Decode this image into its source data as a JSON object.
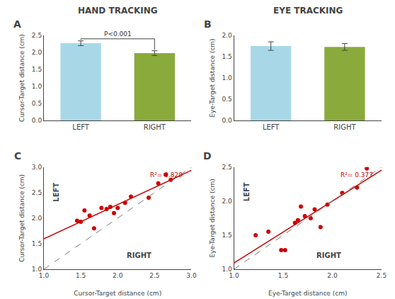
{
  "chart_data": [
    {
      "type": "bar",
      "title": "HAND TRACKING",
      "categories": [
        "LEFT",
        "RIGHT"
      ],
      "values": [
        2.27,
        1.98
      ],
      "errors": [
        0.07,
        0.07
      ],
      "colors": [
        "#a8d8e8",
        "#8aaa3c"
      ],
      "ylabel": "Cursor-Target distance (cm)",
      "ylim": [
        0.0,
        2.5
      ],
      "yticks": [
        {
          "value": 0.0,
          "label": "0.0"
        },
        0.5,
        {
          "value": 1.0,
          "label": "1.0"
        },
        1.5,
        {
          "value": 2.0,
          "label": "2.0"
        },
        2.5
      ],
      "grid": false,
      "annotations": [
        {
          "text": "A"
        },
        {
          "text": "P<0.001",
          "x": [
            "LEFT",
            "RIGHT"
          ]
        }
      ]
    },
    {
      "type": "bar",
      "title": "EYE TRACKING",
      "categories": [
        "LEFT",
        "RIGHT"
      ],
      "values": [
        1.75,
        1.73
      ],
      "errors": [
        0.1,
        0.08
      ],
      "colors": [
        "#a8d8e8",
        "#8aaa3c"
      ],
      "ylabel": "Eye-Target distance (cm)",
      "ylim": [
        0.0,
        2.0
      ],
      "yticks": [
        {
          "value": 0.0,
          "label": "0.0"
        },
        0.5,
        {
          "value": 1.0,
          "label": "1.0"
        },
        1.5,
        {
          "value": 2.0,
          "label": "2.0"
        }
      ],
      "grid": false,
      "annotations": [
        {
          "text": "B"
        }
      ]
    },
    {
      "type": "scatter",
      "xlabel": "Cursor-Target distance (cm)",
      "ylabel": "Cursor-Target distance (cm)",
      "xlim": [
        1.0,
        3.0
      ],
      "ylim": [
        1.0,
        3.0
      ],
      "xticks": [
        {
          "value": 1.0,
          "label": "1.0"
        },
        1.5,
        {
          "value": 2.0,
          "label": "2.0"
        },
        2.5,
        {
          "value": 3.0,
          "label": "3.0"
        }
      ],
      "yticks": [
        {
          "value": 1.0,
          "label": "1.0"
        },
        1.5,
        {
          "value": 2.0,
          "label": "2.0"
        },
        2.5,
        {
          "value": 3.0,
          "label": "3.0"
        }
      ],
      "grid": false,
      "series": [
        {
          "type": "scatter",
          "color": "#cc0000",
          "x": [
            1.45,
            1.5,
            1.55,
            1.62,
            1.68,
            1.78,
            1.85,
            1.9,
            1.95,
            2.0,
            2.1,
            2.18,
            2.42,
            2.55,
            2.65,
            2.72
          ],
          "values": [
            1.95,
            1.93,
            2.15,
            2.05,
            1.8,
            2.2,
            2.18,
            2.22,
            2.1,
            2.2,
            2.3,
            2.42,
            2.4,
            2.68,
            2.85,
            2.75
          ]
        },
        {
          "type": "line",
          "color": "#cc0000",
          "x": [
            1.0,
            3.0
          ],
          "values": [
            1.5947,
            2.9362
          ]
        },
        {
          "type": "line",
          "color": "#777777",
          "line_style": "dashed",
          "x": [
            1.0,
            3.0
          ],
          "values": [
            1.0,
            3.0
          ]
        }
      ],
      "annotations": [
        {
          "text": "C"
        },
        {
          "text": "R²= 0.829",
          "color": "#cc0000"
        },
        {
          "text": "LEFT"
        },
        {
          "text": "RIGHT"
        }
      ]
    },
    {
      "type": "scatter",
      "xlabel": "Eye-Target distance (cm)",
      "ylabel": "Eye-Target distance (cm)",
      "xlim": [
        1.0,
        2.5
      ],
      "ylim": [
        1.0,
        2.5
      ],
      "xticks": [
        {
          "value": 1.0,
          "label": "1.0"
        },
        1.5,
        {
          "value": 2.0,
          "label": "2.0"
        },
        2.5
      ],
      "yticks": [
        {
          "value": 1.0,
          "label": "1.0"
        },
        1.5,
        {
          "value": 2.0,
          "label": "2.0"
        },
        2.5
      ],
      "grid": false,
      "series": [
        {
          "type": "scatter",
          "color": "#cc0000",
          "x": [
            1.22,
            1.35,
            1.48,
            1.52,
            1.62,
            1.65,
            1.68,
            1.72,
            1.78,
            1.82,
            1.88,
            1.95,
            2.1,
            2.25,
            2.35
          ],
          "values": [
            1.5,
            1.55,
            1.28,
            1.28,
            1.68,
            1.72,
            1.92,
            1.78,
            1.75,
            1.88,
            1.62,
            1.95,
            2.12,
            2.2,
            2.48
          ]
        },
        {
          "type": "line",
          "color": "#cc0000",
          "x": [
            1.0,
            2.5
          ],
          "values": [
            1.0911,
            2.4557
          ]
        },
        {
          "type": "line",
          "color": "#777777",
          "line_style": "dashed",
          "x": [
            1.0,
            2.5
          ],
          "values": [
            1.0,
            2.5
          ]
        }
      ],
      "annotations": [
        {
          "text": "D"
        },
        {
          "text": "R²= 0.377",
          "color": "#cc0000"
        },
        {
          "text": "LEFT"
        },
        {
          "text": "RIGHT"
        }
      ]
    }
  ]
}
